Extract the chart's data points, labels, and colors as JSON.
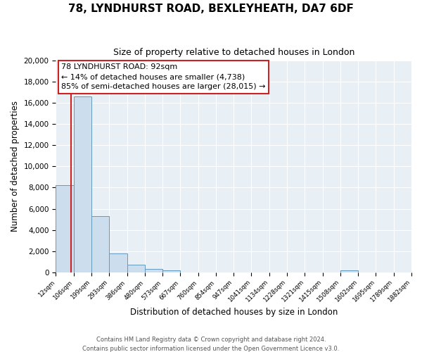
{
  "title": "78, LYNDHURST ROAD, BEXLEYHEATH, DA7 6DF",
  "subtitle": "Size of property relative to detached houses in London",
  "xlabel": "Distribution of detached houses by size in London",
  "ylabel": "Number of detached properties",
  "bin_labels": [
    "12sqm",
    "106sqm",
    "199sqm",
    "293sqm",
    "386sqm",
    "480sqm",
    "573sqm",
    "667sqm",
    "760sqm",
    "854sqm",
    "947sqm",
    "1041sqm",
    "1134sqm",
    "1228sqm",
    "1321sqm",
    "1415sqm",
    "1508sqm",
    "1602sqm",
    "1695sqm",
    "1789sqm",
    "1882sqm"
  ],
  "bar_heights": [
    8200,
    16600,
    5300,
    1800,
    750,
    300,
    160,
    0,
    0,
    0,
    0,
    0,
    0,
    0,
    0,
    0,
    160,
    0,
    0,
    0,
    0
  ],
  "bar_color": "#ccdded",
  "bar_edge_color": "#6699bb",
  "ylim": [
    0,
    20000
  ],
  "yticks": [
    0,
    2000,
    4000,
    6000,
    8000,
    10000,
    12000,
    14000,
    16000,
    18000,
    20000
  ],
  "annotation_title": "78 LYNDHURST ROAD: 92sqm",
  "annotation_line1": "← 14% of detached houses are smaller (4,738)",
  "annotation_line2": "85% of semi-detached houses are larger (28,015) →",
  "footnote1": "Contains HM Land Registry data © Crown copyright and database right 2024.",
  "footnote2": "Contains public sector information licensed under the Open Government Licence v3.0.",
  "background_color": "#ffffff",
  "plot_bg_color": "#e8eff5",
  "grid_color": "#ffffff",
  "annotation_box_facecolor": "#ffffff",
  "annotation_box_edgecolor": "#cc2222",
  "red_line_color": "#cc2222",
  "red_line_x": 0.851
}
